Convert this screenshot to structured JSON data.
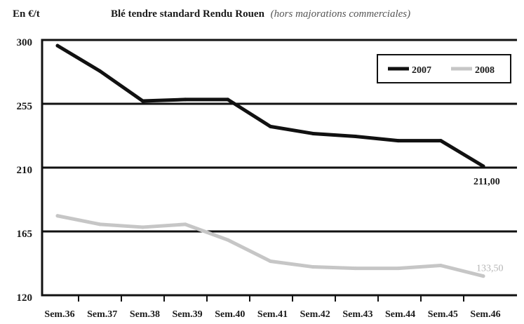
{
  "chart_data": {
    "type": "line",
    "unit_label": "En €/t",
    "title": "Blé tendre standard Rendu Rouen",
    "subtitle": "(hors majorations commerciales)",
    "categories": [
      "Sem.36",
      "Sem.37",
      "Sem.38",
      "Sem.39",
      "Sem.40",
      "Sem.41",
      "Sem.42",
      "Sem.43",
      "Sem.44",
      "Sem.45",
      "Sem.46"
    ],
    "ylim": [
      120,
      300
    ],
    "yticks": [
      300,
      255,
      210,
      165,
      120
    ],
    "grid": true,
    "legend_position": "top-right",
    "series": [
      {
        "name": "2007",
        "color": "#111111",
        "values": [
          296,
          278,
          257,
          258,
          258,
          239,
          234,
          232,
          229,
          229,
          211
        ],
        "end_label": "211,00"
      },
      {
        "name": "2008",
        "color": "#c6c6c6",
        "values": [
          176,
          170,
          168,
          170,
          159,
          144,
          140,
          139,
          139,
          141,
          133.5
        ],
        "end_label": "133,50"
      }
    ]
  }
}
